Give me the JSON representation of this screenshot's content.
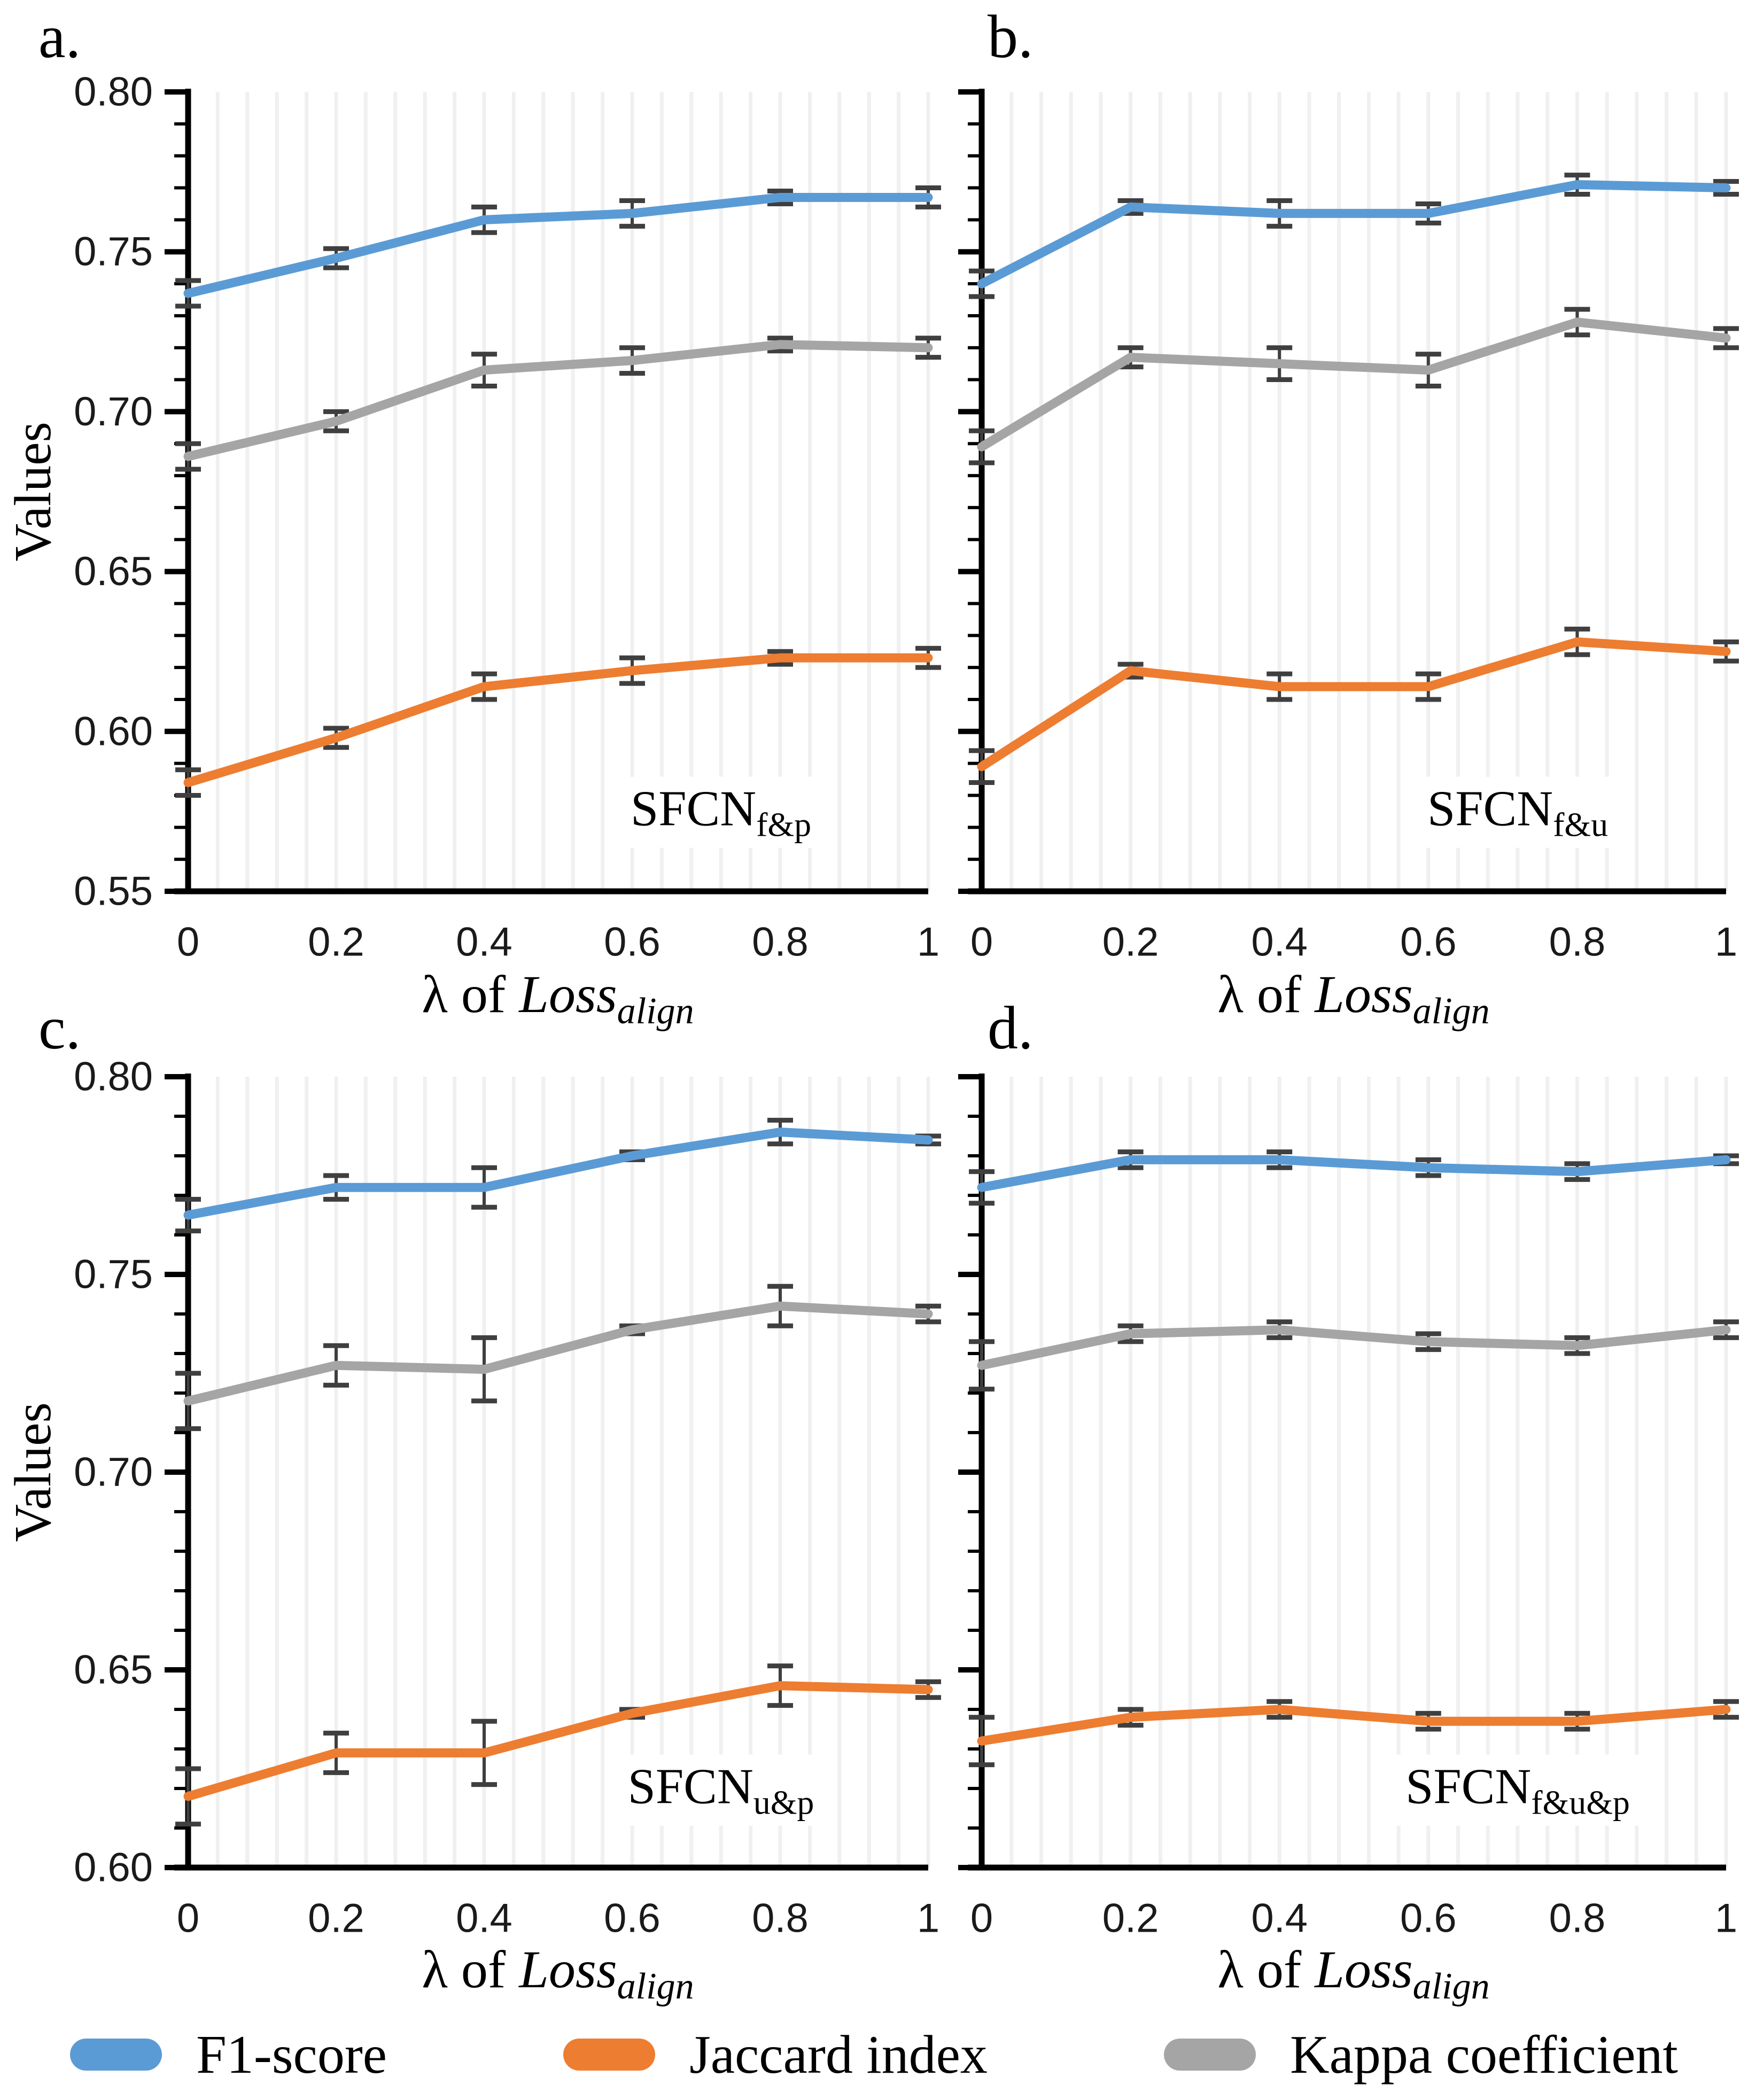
{
  "chart_data": {
    "type": "line",
    "x": [
      0,
      0.2,
      0.4,
      0.6,
      0.8,
      1
    ],
    "x_tick_labels": [
      "0",
      "0.2",
      "0.4",
      "0.6",
      "0.8",
      "1"
    ],
    "xlabel": "λ of Loss_align",
    "xlabel_parts": {
      "prefix": "λ of ",
      "word": "Loss",
      "sub": "align"
    },
    "ylabel": "Values",
    "grid": "minor-vertical-only",
    "minor_x_step": 0.04,
    "minor_y_step": 0.01,
    "major_y_step": 0.05,
    "grid_color": "#F0F0F0",
    "axis_color": "#000000",
    "error_bar_color": "#3F3F3F",
    "legend_position": "bottom",
    "legend": [
      {
        "name": "F1-score",
        "color": "#5B9BD5"
      },
      {
        "name": "Jaccard index",
        "color": "#ED7D31"
      },
      {
        "name": "Kappa coefficient",
        "color": "#A5A5A5"
      }
    ],
    "panels": [
      {
        "id": "a",
        "corner_label": "a.",
        "annotation": {
          "main": "SFCN",
          "sub": "f&p"
        },
        "show_y_labels": true,
        "ylim": [
          0.55,
          0.8
        ],
        "yticks": [
          0.55,
          0.6,
          0.65,
          0.7,
          0.75,
          0.8
        ],
        "series": [
          {
            "name": "F1-score",
            "values": [
              0.737,
              0.748,
              0.76,
              0.762,
              0.767,
              0.767
            ],
            "errors": [
              0.004,
              0.003,
              0.004,
              0.004,
              0.002,
              0.003
            ]
          },
          {
            "name": "Jaccard index",
            "values": [
              0.584,
              0.598,
              0.614,
              0.619,
              0.623,
              0.623
            ],
            "errors": [
              0.004,
              0.003,
              0.004,
              0.004,
              0.002,
              0.003
            ]
          },
          {
            "name": "Kappa coefficient",
            "values": [
              0.686,
              0.697,
              0.713,
              0.716,
              0.721,
              0.72
            ],
            "errors": [
              0.004,
              0.003,
              0.005,
              0.004,
              0.002,
              0.003
            ]
          }
        ]
      },
      {
        "id": "b",
        "corner_label": "b.",
        "annotation": {
          "main": "SFCN",
          "sub": "f&u"
        },
        "show_y_labels": false,
        "ylim": [
          0.55,
          0.8
        ],
        "yticks": [
          0.55,
          0.6,
          0.65,
          0.7,
          0.75,
          0.8
        ],
        "series": [
          {
            "name": "F1-score",
            "values": [
              0.74,
              0.764,
              0.762,
              0.762,
              0.771,
              0.77
            ],
            "errors": [
              0.004,
              0.002,
              0.004,
              0.003,
              0.003,
              0.002
            ]
          },
          {
            "name": "Jaccard index",
            "values": [
              0.589,
              0.619,
              0.614,
              0.614,
              0.628,
              0.625
            ],
            "errors": [
              0.005,
              0.002,
              0.004,
              0.004,
              0.004,
              0.003
            ]
          },
          {
            "name": "Kappa coefficient",
            "values": [
              0.689,
              0.717,
              0.715,
              0.713,
              0.728,
              0.723
            ],
            "errors": [
              0.005,
              0.003,
              0.005,
              0.005,
              0.004,
              0.003
            ]
          }
        ]
      },
      {
        "id": "c",
        "corner_label": "c.",
        "annotation": {
          "main": "SFCN",
          "sub": "u&p"
        },
        "show_y_labels": true,
        "ylim": [
          0.6,
          0.8
        ],
        "yticks": [
          0.6,
          0.65,
          0.7,
          0.75,
          0.8
        ],
        "series": [
          {
            "name": "F1-score",
            "values": [
              0.765,
              0.772,
              0.772,
              0.78,
              0.786,
              0.784
            ],
            "errors": [
              0.004,
              0.003,
              0.005,
              0.001,
              0.003,
              0.001
            ]
          },
          {
            "name": "Jaccard index",
            "values": [
              0.618,
              0.629,
              0.629,
              0.639,
              0.646,
              0.645
            ],
            "errors": [
              0.007,
              0.005,
              0.008,
              0.001,
              0.005,
              0.002
            ]
          },
          {
            "name": "Kappa coefficient",
            "values": [
              0.718,
              0.727,
              0.726,
              0.736,
              0.742,
              0.74
            ],
            "errors": [
              0.007,
              0.005,
              0.008,
              0.001,
              0.005,
              0.002
            ]
          }
        ]
      },
      {
        "id": "d",
        "corner_label": "d.",
        "annotation": {
          "main": "SFCN",
          "sub": "f&u&p"
        },
        "show_y_labels": false,
        "ylim": [
          0.6,
          0.8
        ],
        "yticks": [
          0.6,
          0.65,
          0.7,
          0.75,
          0.8
        ],
        "series": [
          {
            "name": "F1-score",
            "values": [
              0.772,
              0.779,
              0.779,
              0.777,
              0.776,
              0.779
            ],
            "errors": [
              0.004,
              0.002,
              0.002,
              0.002,
              0.002,
              0.001
            ]
          },
          {
            "name": "Jaccard index",
            "values": [
              0.632,
              0.638,
              0.64,
              0.637,
              0.637,
              0.64
            ],
            "errors": [
              0.006,
              0.002,
              0.002,
              0.002,
              0.002,
              0.002
            ]
          },
          {
            "name": "Kappa coefficient",
            "values": [
              0.727,
              0.735,
              0.736,
              0.733,
              0.732,
              0.736
            ],
            "errors": [
              0.006,
              0.002,
              0.002,
              0.002,
              0.002,
              0.002
            ]
          }
        ]
      }
    ]
  }
}
